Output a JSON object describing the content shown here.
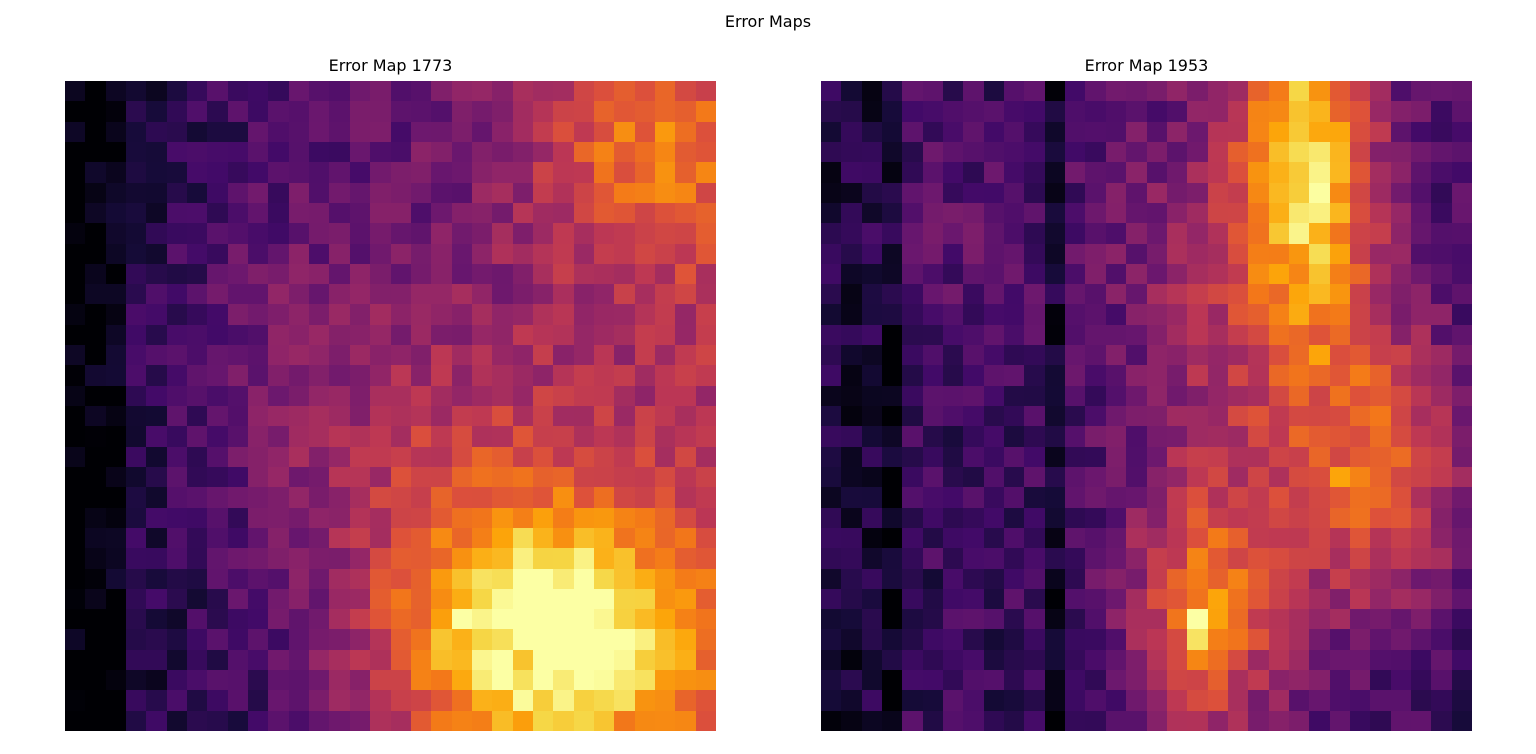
{
  "figure": {
    "title": "Error Maps"
  },
  "chart_data": [
    {
      "type": "heatmap",
      "title": "Error Map 1773",
      "colormap": "inferno",
      "grid": false,
      "axes": "off",
      "rows": 32,
      "cols": 32
    },
    {
      "type": "heatmap",
      "title": "Error Map 1953",
      "colormap": "inferno",
      "grid": false,
      "axes": "off",
      "rows": 32,
      "cols": 32
    }
  ]
}
